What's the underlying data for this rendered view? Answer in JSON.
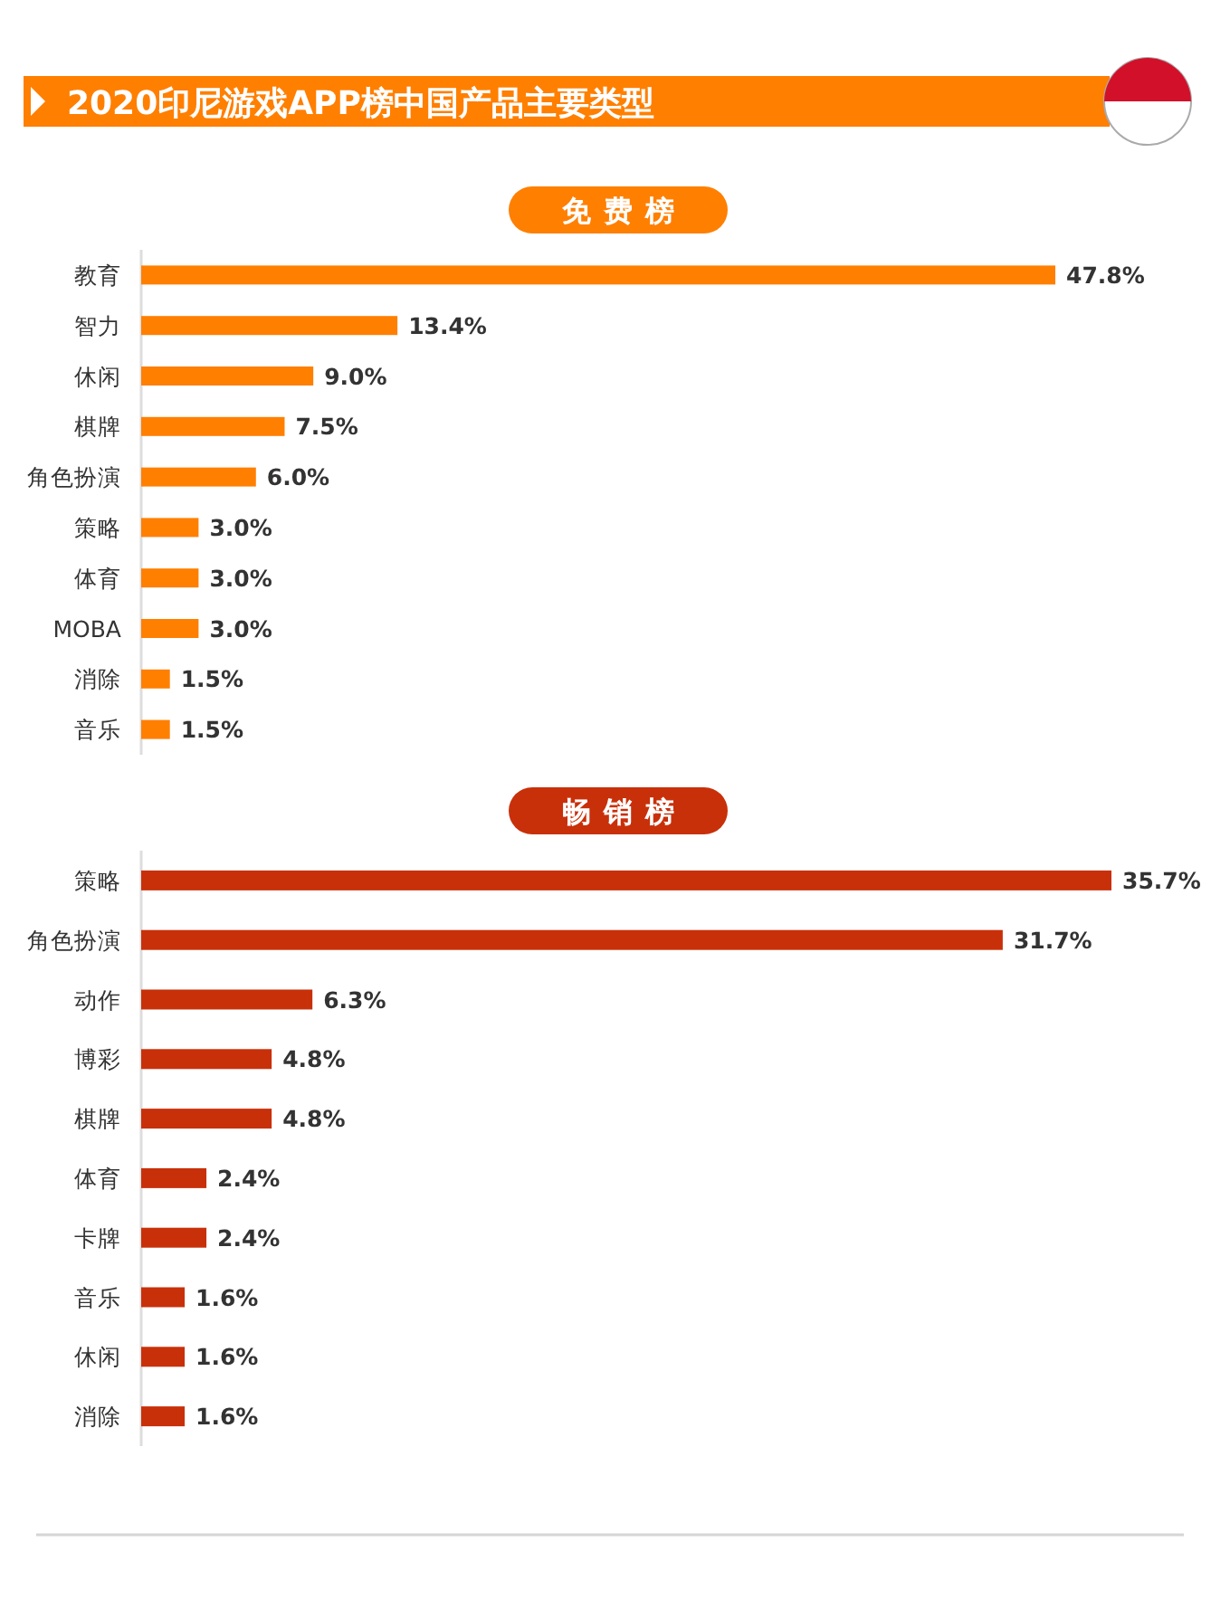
{
  "chart_data": [
    {
      "type": "bar",
      "orientation": "horizontal",
      "title": "2020印尼游戏APP榜中国产品主要类型",
      "subtitle": "免费榜",
      "categories": [
        "教育",
        "智力",
        "休闲",
        "棋牌",
        "角色扮演",
        "策略",
        "体育",
        "MOBA",
        "消除",
        "音乐"
      ],
      "values": [
        47.8,
        13.4,
        9.0,
        7.5,
        6.0,
        3.0,
        3.0,
        3.0,
        1.5,
        1.5
      ],
      "value_labels": [
        "47.8%",
        "13.4%",
        "9.0%",
        "7.5%",
        "6.0%",
        "3.0%",
        "3.0%",
        "3.0%",
        "1.5%",
        "1.5%"
      ],
      "color": "#ff7f00",
      "tick_labels": "y"
    },
    {
      "type": "bar",
      "orientation": "horizontal",
      "title": "畅销榜",
      "categories": [
        "策略",
        "角色扮演",
        "动作",
        "博彩",
        "棋牌",
        "体育",
        "卡牌",
        "音乐",
        "休闲",
        "消除"
      ],
      "values": [
        35.7,
        31.7,
        6.3,
        4.8,
        4.8,
        2.4,
        2.4,
        1.6,
        1.6,
        1.6
      ],
      "value_labels": [
        "35.7%",
        "31.7%",
        "6.3%",
        "4.8%",
        "4.8%",
        "2.4%",
        "2.4%",
        "1.6%",
        "1.6%",
        "1.6%"
      ],
      "color": "#c8300a",
      "tick_labels": "y"
    }
  ]
}
